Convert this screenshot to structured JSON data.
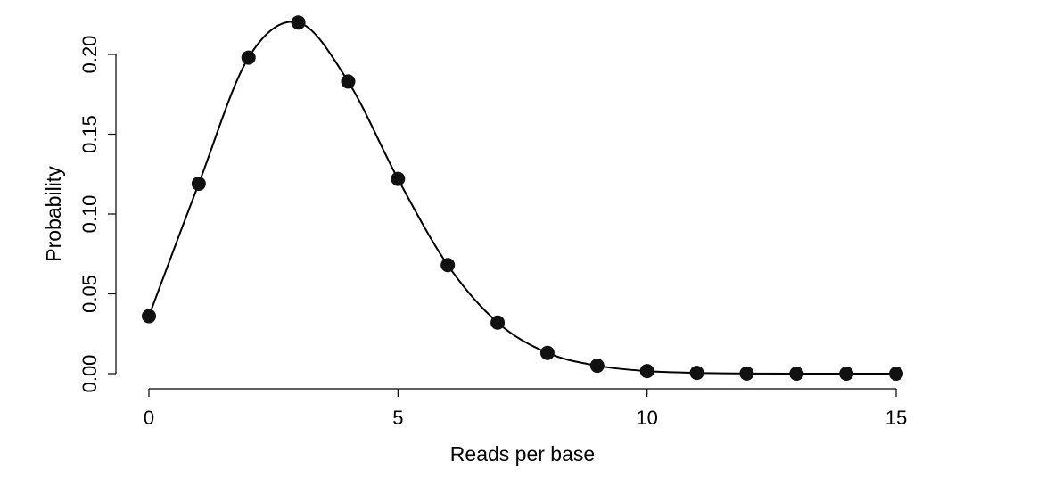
{
  "chart_data": {
    "type": "scatter",
    "title": "",
    "xlabel": "Reads per base",
    "ylabel": "Probability",
    "xlim": [
      0,
      15
    ],
    "ylim": [
      0,
      0.22
    ],
    "x_ticks": [
      0,
      5,
      10,
      15
    ],
    "x_tick_labels": [
      "0",
      "5",
      "10",
      "15"
    ],
    "y_ticks": [
      0,
      0.05,
      0.1,
      0.15,
      0.2
    ],
    "y_tick_labels": [
      "0.00",
      "0.05",
      "0.10",
      "0.15",
      "0.20"
    ],
    "grid": false,
    "legend": "none",
    "series": [
      {
        "kind": "points",
        "x": [
          0,
          1,
          2,
          3,
          4,
          5,
          6,
          7,
          8,
          9,
          10,
          11,
          12,
          13,
          14,
          15
        ],
        "y": [
          0.036,
          0.119,
          0.198,
          0.22,
          0.183,
          0.122,
          0.068,
          0.032,
          0.013,
          0.005,
          0.0016,
          0.0005,
          0.0001,
          0.0,
          0.0,
          0.0
        ]
      },
      {
        "kind": "smooth-curve",
        "x": [
          0,
          1,
          2,
          3,
          4,
          5,
          6,
          7,
          8,
          9,
          10,
          11,
          12,
          13,
          14,
          15
        ],
        "y": [
          0.036,
          0.119,
          0.198,
          0.22,
          0.183,
          0.122,
          0.068,
          0.032,
          0.013,
          0.005,
          0.0016,
          0.0005,
          0.0001,
          0.0,
          0.0,
          0.0
        ]
      }
    ],
    "colors": {
      "points": "#111111",
      "curve": "#000000",
      "axes": "#000000"
    }
  }
}
